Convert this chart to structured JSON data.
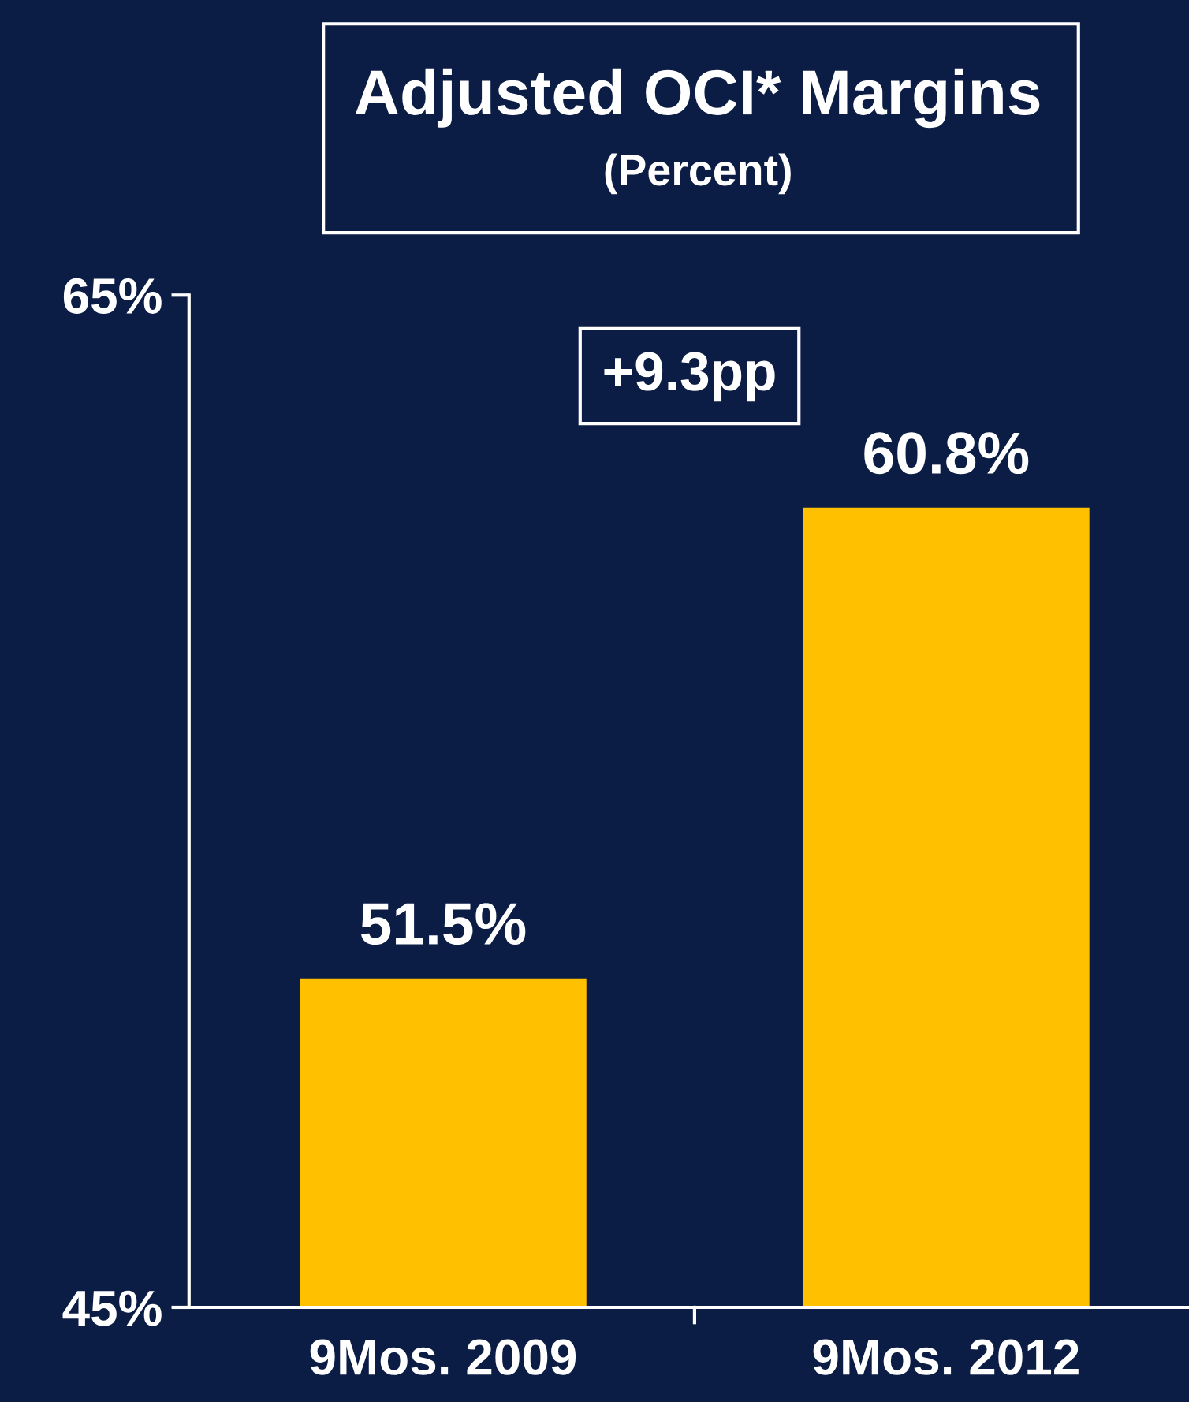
{
  "chart_data": {
    "type": "bar",
    "title": "Adjusted OCI* Margins",
    "subtitle": "(Percent)",
    "categories": [
      "9Mos. 2009",
      "9Mos. 2012"
    ],
    "values": [
      51.5,
      60.8
    ],
    "value_labels": [
      "51.5%",
      "60.8%"
    ],
    "color": "#ffc000",
    "ylim": [
      45,
      65
    ],
    "yticks": [
      {
        "value": 45,
        "label": "45%"
      },
      {
        "value": 65,
        "label": "65%"
      }
    ],
    "annotations": [
      "+9.3pp"
    ]
  }
}
